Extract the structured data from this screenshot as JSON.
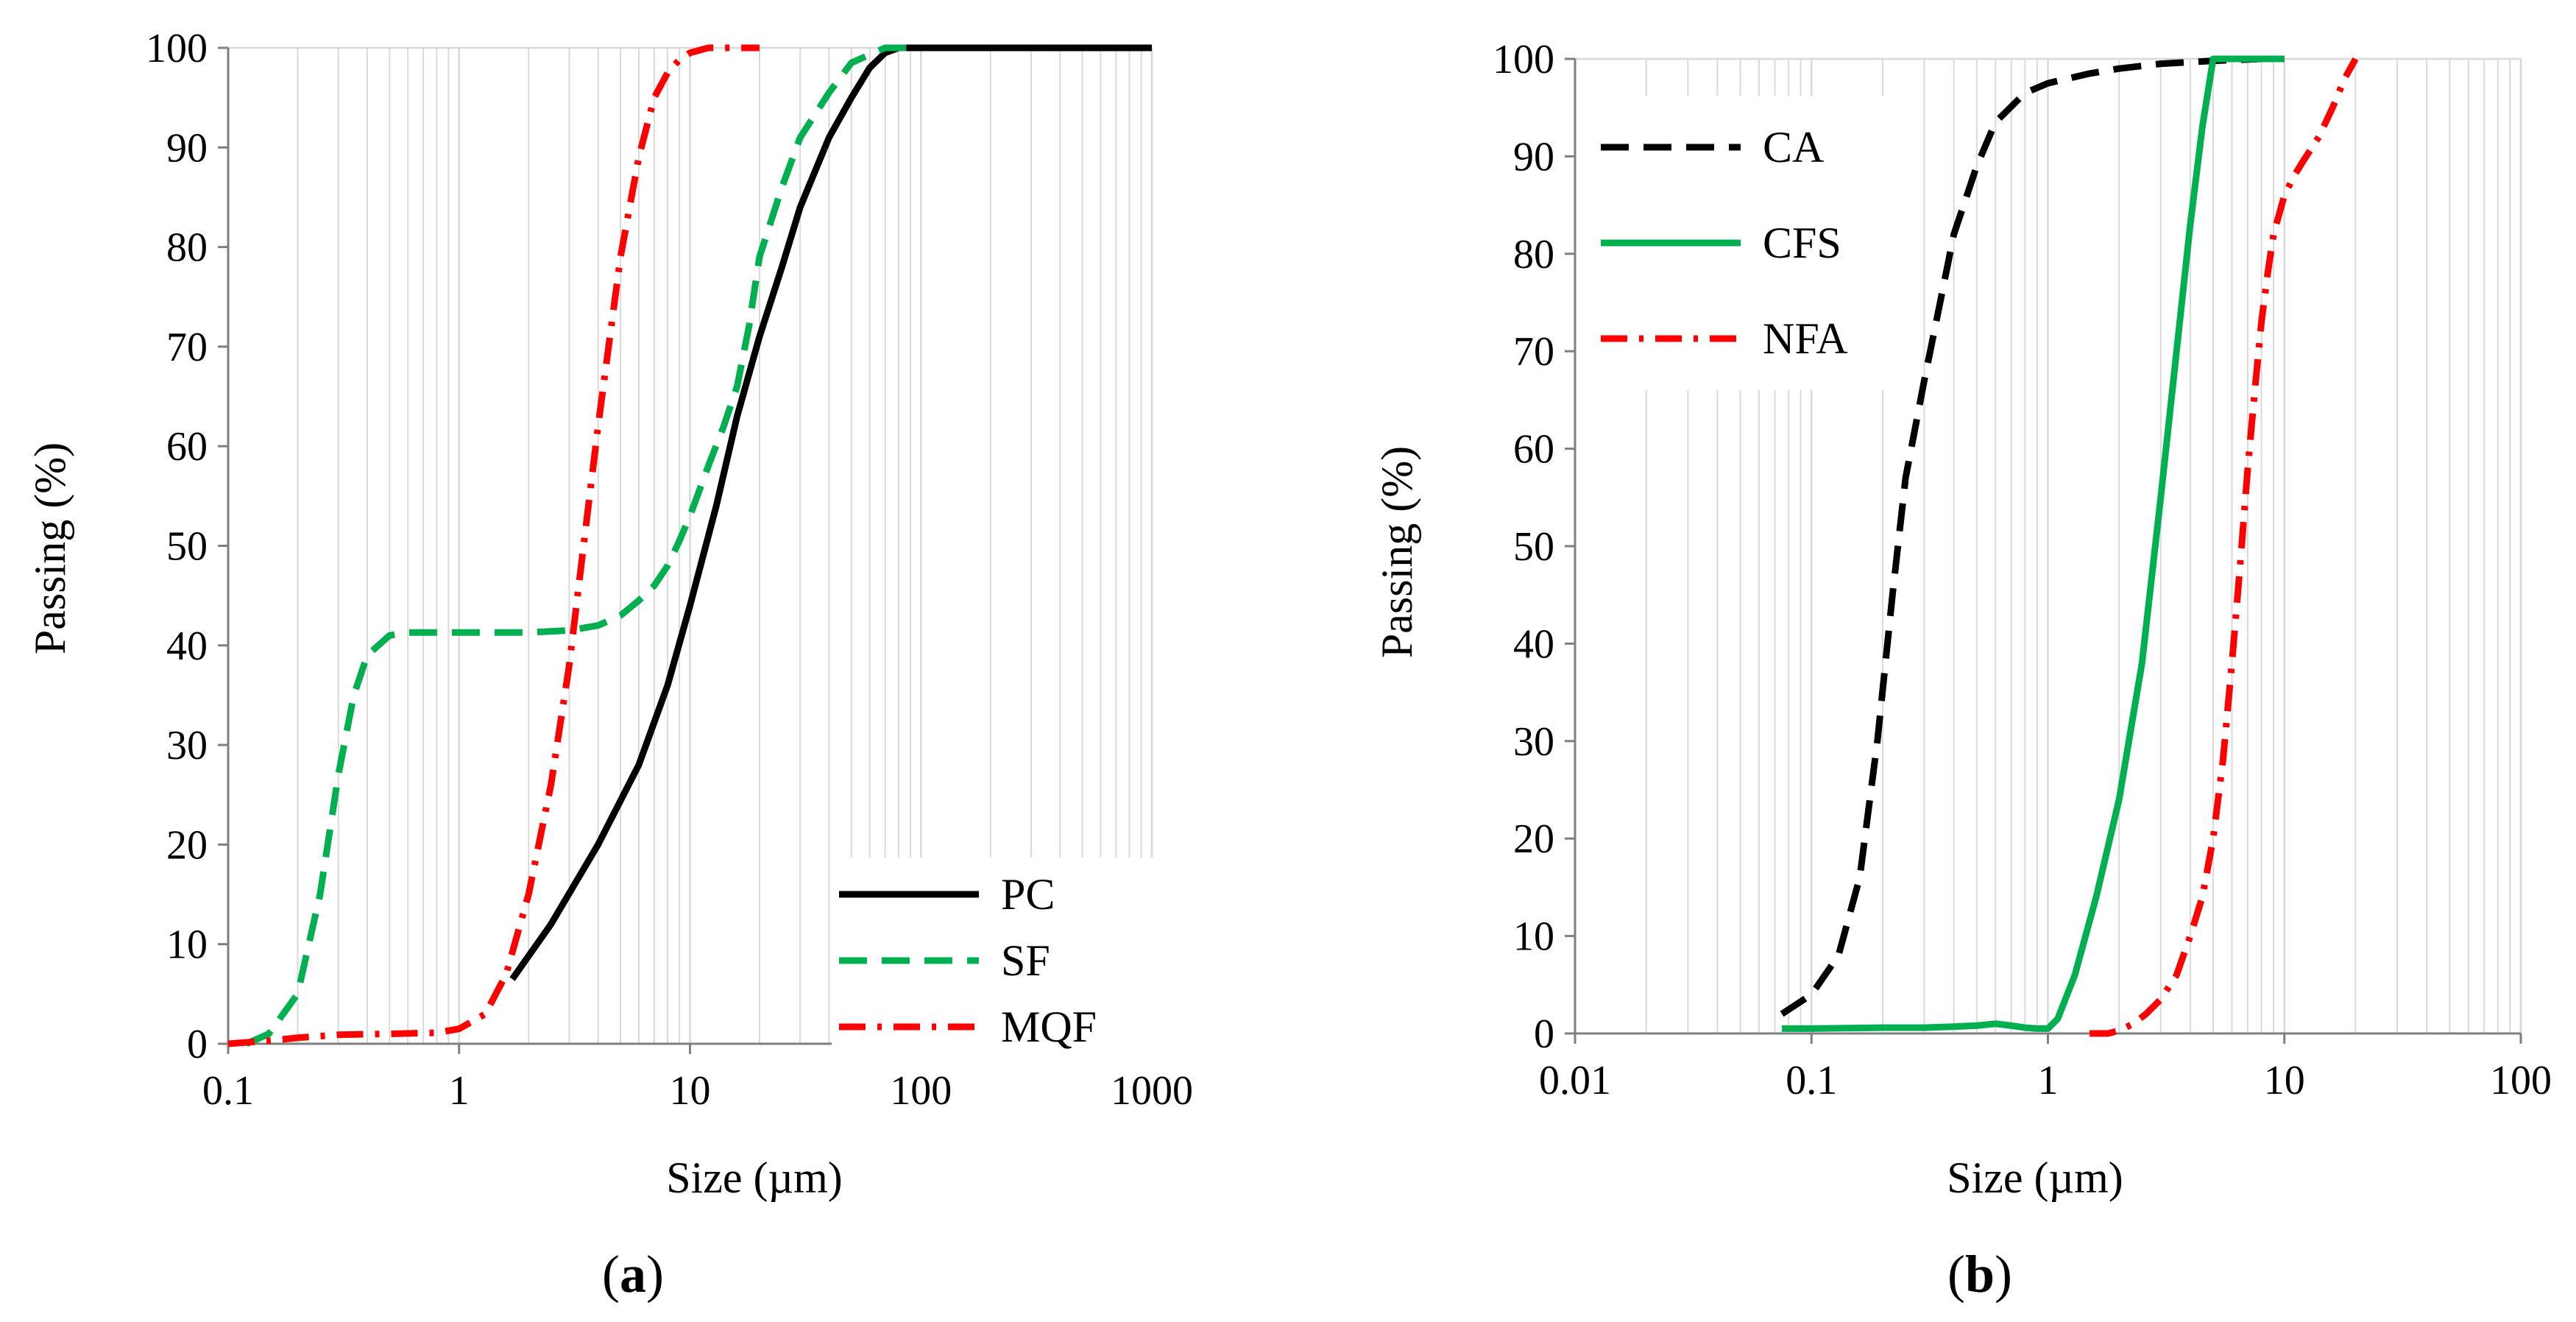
{
  "colors": {
    "black": "#000000",
    "green": "#00b050",
    "red": "#ff0000",
    "grid": "#d9d9d9",
    "axis": "#7f7f7f"
  },
  "chart_data": [
    {
      "id": "a",
      "type": "line",
      "panel_label": "a",
      "xlabel": "Size (µm)",
      "ylabel": "Passing (%)",
      "xscale": "log",
      "xlim": [
        0.1,
        1000
      ],
      "ylim": [
        0,
        100
      ],
      "x_ticks": [
        "0.1",
        "1",
        "10",
        "100",
        "1000"
      ],
      "y_ticks": [
        "0",
        "10",
        "20",
        "30",
        "40",
        "50",
        "60",
        "70",
        "80",
        "90",
        "100"
      ],
      "legend_position": "bottom-right",
      "series": [
        {
          "name": "PC",
          "color": "#000000",
          "style": "solid",
          "x": [
            1.7,
            2.5,
            4,
            6,
            8,
            10,
            13,
            16,
            20,
            25,
            30,
            40,
            50,
            60,
            70,
            80,
            100,
            200,
            1000
          ],
          "y": [
            6.5,
            12,
            20,
            28,
            36,
            44,
            54,
            63,
            71,
            78,
            84,
            91,
            95,
            98,
            99.5,
            100,
            100,
            100,
            100
          ]
        },
        {
          "name": "SF",
          "color": "#00b050",
          "style": "dash",
          "x": [
            0.12,
            0.15,
            0.2,
            0.25,
            0.3,
            0.35,
            0.4,
            0.5,
            0.6,
            1,
            2,
            3,
            4,
            5,
            6,
            7,
            8,
            9,
            10,
            12,
            14,
            16,
            18,
            20,
            25,
            30,
            40,
            50,
            70,
            100
          ],
          "y": [
            0,
            1,
            5,
            15,
            27,
            35,
            39,
            41,
            41.3,
            41.3,
            41.3,
            41.5,
            42,
            43,
            44.5,
            46,
            48,
            50.5,
            53,
            58,
            62,
            66,
            72,
            79,
            86,
            91,
            95.5,
            98.5,
            100,
            100
          ]
        },
        {
          "name": "MQF",
          "color": "#ff0000",
          "style": "dashdot",
          "x": [
            0.1,
            0.15,
            0.2,
            0.3,
            0.5,
            0.8,
            1,
            1.3,
            1.6,
            2,
            2.5,
            3,
            3.5,
            4,
            4.5,
            5,
            6,
            7,
            8,
            9,
            10,
            12,
            15,
            20
          ],
          "y": [
            0,
            0.3,
            0.6,
            0.9,
            1,
            1.1,
            1.5,
            3,
            7,
            15,
            26,
            38,
            51,
            62,
            71,
            79,
            89,
            95,
            97.5,
            98.8,
            99.5,
            100,
            100,
            100
          ]
        }
      ]
    },
    {
      "id": "b",
      "type": "line",
      "panel_label": "b",
      "xlabel": "Size (µm)",
      "ylabel": "Passing (%)",
      "xscale": "log",
      "xlim": [
        0.01,
        100
      ],
      "ylim": [
        0,
        100
      ],
      "x_ticks": [
        "0.01",
        "0.1",
        "1",
        "10",
        "100"
      ],
      "y_ticks": [
        "0",
        "10",
        "20",
        "30",
        "40",
        "50",
        "60",
        "70",
        "80",
        "90",
        "100"
      ],
      "legend_position": "top-left",
      "series": [
        {
          "name": "CA",
          "color": "#000000",
          "style": "dash",
          "x": [
            0.075,
            0.1,
            0.13,
            0.16,
            0.19,
            0.22,
            0.25,
            0.3,
            0.35,
            0.4,
            0.5,
            0.6,
            0.8,
            1,
            1.5,
            2,
            3,
            5,
            8,
            10
          ],
          "y": [
            2,
            4,
            8,
            16,
            30,
            45,
            57,
            67,
            75,
            82,
            89,
            93.5,
            96.5,
            97.5,
            98.5,
            99,
            99.5,
            99.8,
            100,
            100
          ]
        },
        {
          "name": "CFS",
          "color": "#00b050",
          "style": "solid",
          "x": [
            0.075,
            0.1,
            0.2,
            0.3,
            0.4,
            0.5,
            0.6,
            0.7,
            0.8,
            0.9,
            1,
            1.1,
            1.3,
            1.6,
            2,
            2.5,
            3,
            3.5,
            4,
            4.5,
            5,
            6,
            8,
            10
          ],
          "y": [
            0.5,
            0.5,
            0.6,
            0.6,
            0.7,
            0.8,
            1,
            0.8,
            0.6,
            0.5,
            0.5,
            1.5,
            6,
            14,
            24,
            38,
            55,
            70,
            83,
            93,
            100,
            100,
            100,
            100
          ]
        },
        {
          "name": "NFA",
          "color": "#ff0000",
          "style": "dashdot",
          "x": [
            1.5,
            1.8,
            2,
            2.3,
            2.6,
            3,
            3.5,
            4,
            4.5,
            5,
            5.5,
            6,
            6.5,
            7,
            7.5,
            8,
            8.5,
            9,
            10,
            11,
            12,
            14,
            16,
            18,
            20
          ],
          "y": [
            0,
            0,
            0.3,
            1,
            2,
            3.5,
            6,
            10,
            14,
            20,
            28,
            38,
            48,
            58,
            66,
            73,
            78,
            82,
            86,
            88,
            89.5,
            92,
            95,
            98,
            100
          ]
        }
      ]
    }
  ]
}
